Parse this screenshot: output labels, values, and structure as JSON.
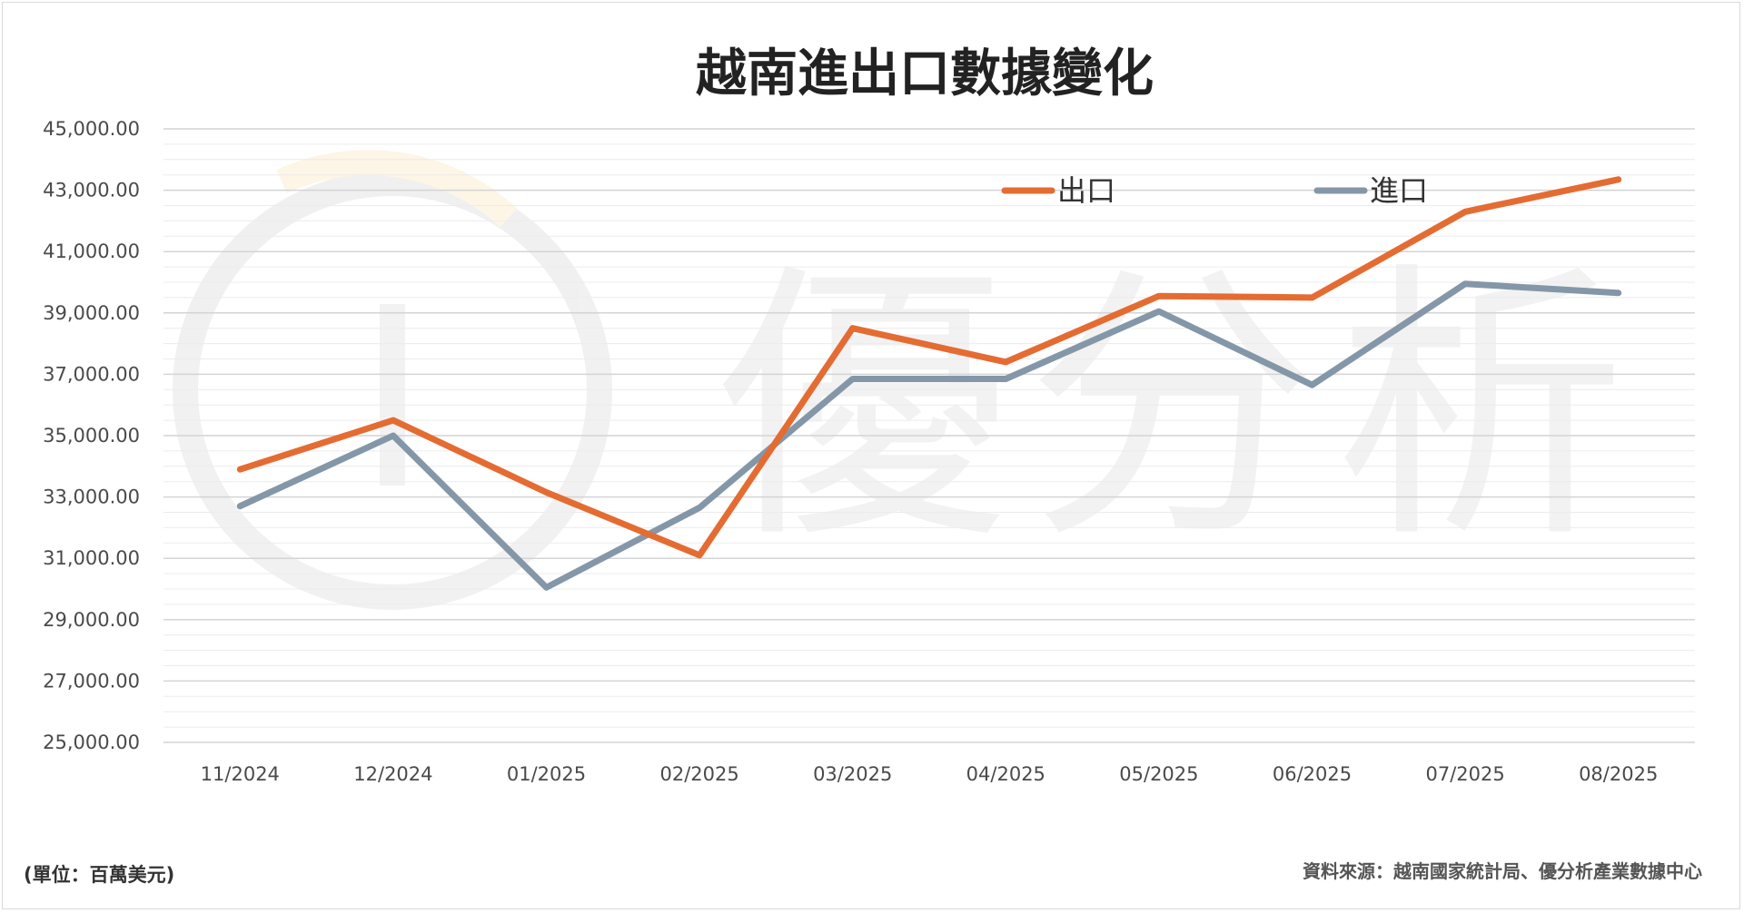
{
  "chart_data": {
    "type": "line",
    "title": "越南進出口數據變化",
    "categories": [
      "11/2024",
      "12/2024",
      "01/2025",
      "02/2025",
      "03/2025",
      "04/2025",
      "05/2025",
      "06/2025",
      "07/2025",
      "08/2025"
    ],
    "series": [
      {
        "name": "出口",
        "color": "#E46C32",
        "values": [
          33900,
          35500,
          33150,
          31100,
          38500,
          37400,
          39550,
          39500,
          42300,
          43350
        ]
      },
      {
        "name": "進口",
        "color": "#8497A8",
        "values": [
          32700,
          35000,
          30050,
          32650,
          36850,
          36850,
          39050,
          36650,
          39950,
          39650
        ]
      }
    ],
    "ylim": [
      25000,
      45000
    ],
    "yticks": [
      "45,000.00",
      "43,000.00",
      "41,000.00",
      "39,000.00",
      "37,000.00",
      "35,000.00",
      "33,000.00",
      "31,000.00",
      "29,000.00",
      "27,000.00",
      "25,000.00"
    ],
    "grid": true,
    "legend_position": "top-right"
  },
  "watermark": {
    "text": "優分析"
  },
  "footer": {
    "unit": "(單位：百萬美元)",
    "source": "資料來源：越南國家統計局、優分析產業數據中心"
  }
}
